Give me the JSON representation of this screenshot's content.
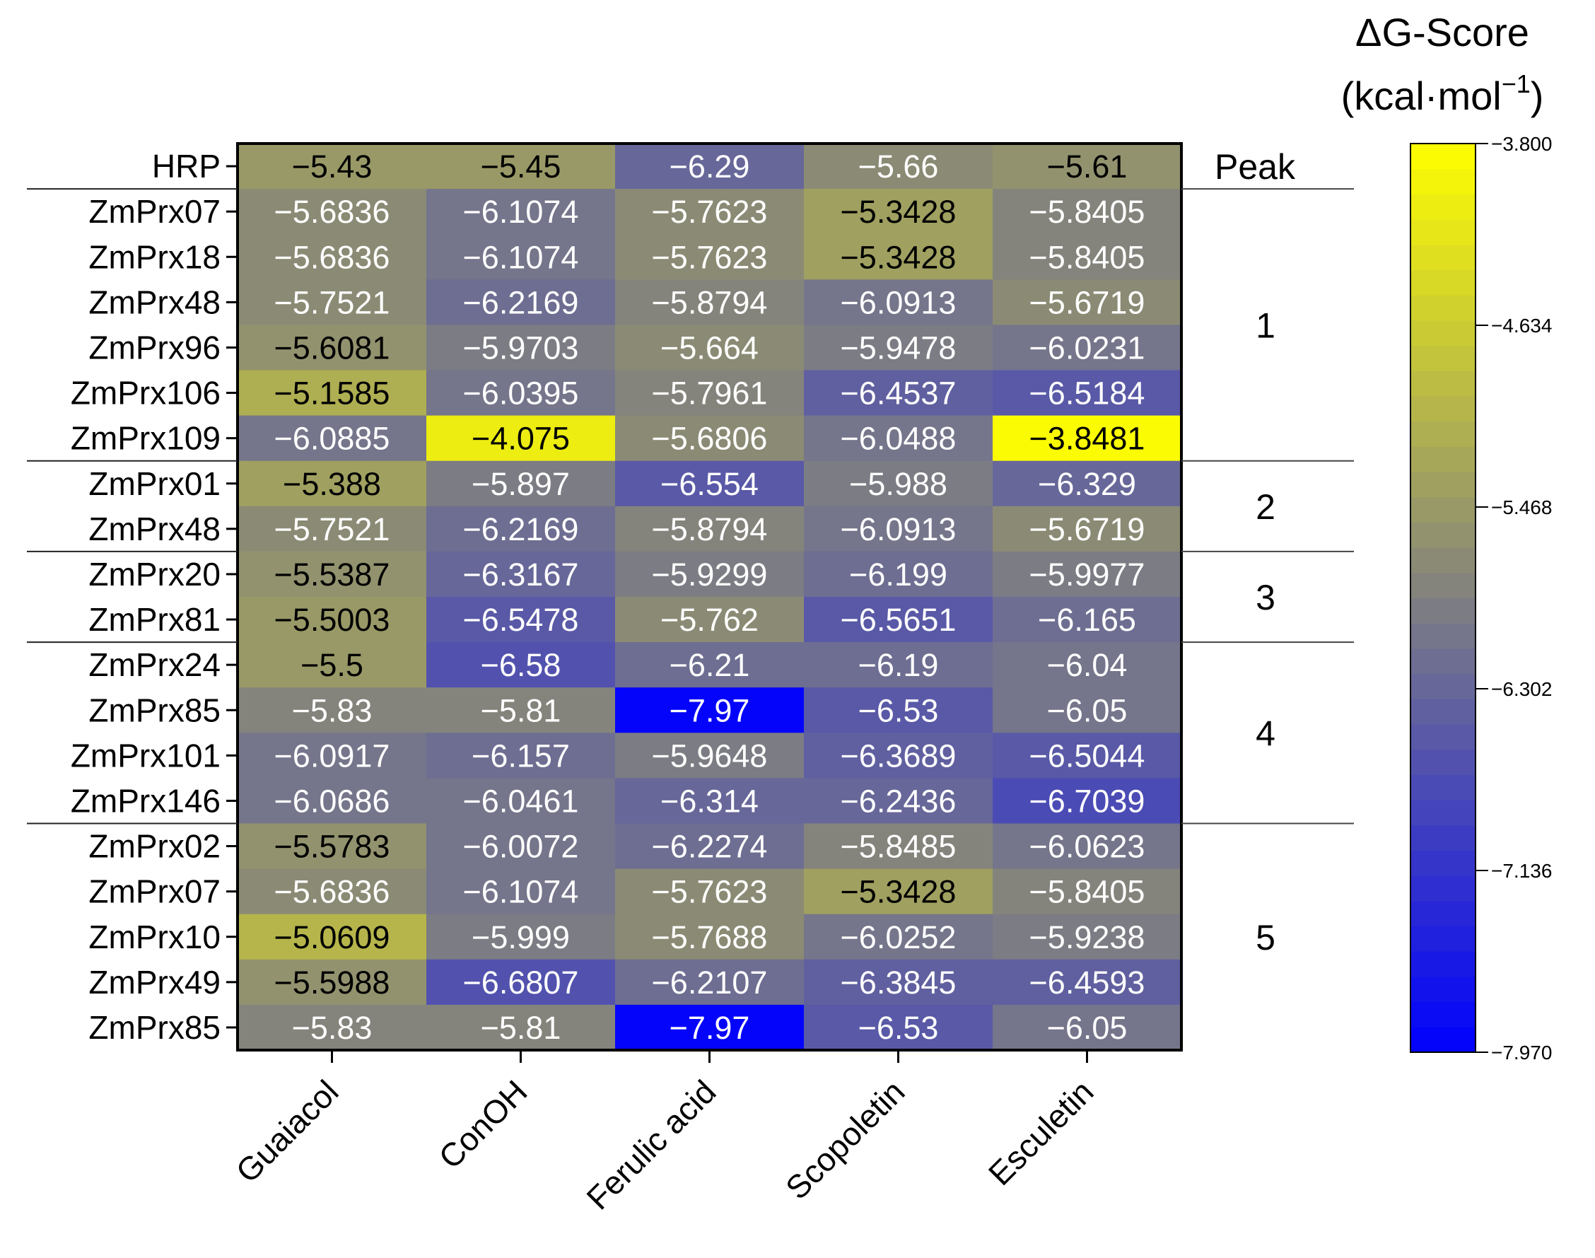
{
  "chart_data": {
    "type": "heatmap",
    "title": "",
    "xlabel": "",
    "ylabel": "",
    "colorbar": {
      "title_line1": "ΔG-Score",
      "title_line2": "(kcal·mol",
      "title_sup": "−1",
      "title_close": ")",
      "min": -7.97,
      "max": -3.8,
      "ticks": [
        "-3.800",
        "-4.634",
        "-5.468",
        "-6.302",
        "-7.136",
        "-7.970"
      ],
      "tick_values": [
        -3.8,
        -4.634,
        -5.468,
        -6.302,
        -7.136,
        -7.97
      ],
      "colors": {
        "low": "#0000ff",
        "mid": "#808080",
        "high": "#ffff00"
      },
      "levels": 36
    },
    "columns": [
      "Guaiacol",
      "ConOH",
      "Ferulic acid",
      "Scopoletin",
      "Esculetin"
    ],
    "rows": [
      {
        "label": "HRP",
        "values": [
          -5.43,
          -5.45,
          -6.29,
          -5.66,
          -5.61
        ],
        "labels": [
          "-5.43",
          "-5.45",
          "-6.29",
          "-5.66",
          "-5.61"
        ]
      },
      {
        "label": "ZmPrx07",
        "values": [
          -5.6836,
          -6.1074,
          -5.7623,
          -5.3428,
          -5.8405
        ],
        "labels": [
          "-5.6836",
          "-6.1074",
          "-5.7623",
          "-5.3428",
          "-5.8405"
        ]
      },
      {
        "label": "ZmPrx18",
        "values": [
          -5.6836,
          -6.1074,
          -5.7623,
          -5.3428,
          -5.8405
        ],
        "labels": [
          "-5.6836",
          "-6.1074",
          "-5.7623",
          "-5.3428",
          "-5.8405"
        ]
      },
      {
        "label": "ZmPrx48",
        "values": [
          -5.7521,
          -6.2169,
          -5.8794,
          -6.0913,
          -5.6719
        ],
        "labels": [
          "-5.7521",
          "-6.2169",
          "-5.8794",
          "-6.0913",
          "-5.6719"
        ]
      },
      {
        "label": "ZmPrx96",
        "values": [
          -5.6081,
          -5.9703,
          -5.664,
          -5.9478,
          -6.0231
        ],
        "labels": [
          "-5.6081",
          "-5.9703",
          "-5.664",
          "-5.9478",
          "-6.0231"
        ]
      },
      {
        "label": "ZmPrx106",
        "values": [
          -5.1585,
          -6.0395,
          -5.7961,
          -6.4537,
          -6.5184
        ],
        "labels": [
          "-5.1585",
          "-6.0395",
          "-5.7961",
          "-6.4537",
          "-6.5184"
        ]
      },
      {
        "label": "ZmPrx109",
        "values": [
          -6.0885,
          -4.075,
          -5.6806,
          -6.0488,
          -3.8481
        ],
        "labels": [
          "-6.0885",
          "-4.075",
          "-5.6806",
          "-6.0488",
          "-3.8481"
        ]
      },
      {
        "label": "ZmPrx01",
        "values": [
          -5.388,
          -5.897,
          -6.554,
          -5.988,
          -6.329
        ],
        "labels": [
          "-5.388",
          "-5.897",
          "-6.554",
          "-5.988",
          "-6.329"
        ]
      },
      {
        "label": "ZmPrx48",
        "values": [
          -5.7521,
          -6.2169,
          -5.8794,
          -6.0913,
          -5.6719
        ],
        "labels": [
          "-5.7521",
          "-6.2169",
          "-5.8794",
          "-6.0913",
          "-5.6719"
        ]
      },
      {
        "label": "ZmPrx20",
        "values": [
          -5.5387,
          -6.3167,
          -5.9299,
          -6.199,
          -5.9977
        ],
        "labels": [
          "-5.5387",
          "-6.3167",
          "-5.9299",
          "-6.199",
          "-5.9977"
        ]
      },
      {
        "label": "ZmPrx81",
        "values": [
          -5.5003,
          -6.5478,
          -5.762,
          -6.5651,
          -6.165
        ],
        "labels": [
          "-5.5003",
          "-6.5478",
          "-5.762",
          "-6.5651",
          "-6.165"
        ]
      },
      {
        "label": "ZmPrx24",
        "values": [
          -5.5,
          -6.58,
          -6.21,
          -6.19,
          -6.04
        ],
        "labels": [
          "-5.5",
          "-6.58",
          "-6.21",
          "-6.19",
          "-6.04"
        ]
      },
      {
        "label": "ZmPrx85",
        "values": [
          -5.83,
          -5.81,
          -7.97,
          -6.53,
          -6.05
        ],
        "labels": [
          "-5.83",
          "-5.81",
          "-7.97",
          "-6.53",
          "-6.05"
        ]
      },
      {
        "label": "ZmPrx101",
        "values": [
          -6.0917,
          -6.157,
          -5.9648,
          -6.3689,
          -6.5044
        ],
        "labels": [
          "-6.0917",
          "-6.157",
          "-5.9648",
          "-6.3689",
          "-6.5044"
        ]
      },
      {
        "label": "ZmPrx146",
        "values": [
          -6.0686,
          -6.0461,
          -6.314,
          -6.2436,
          -6.7039
        ],
        "labels": [
          "-6.0686",
          "-6.0461",
          "-6.314",
          "-6.2436",
          "-6.7039"
        ]
      },
      {
        "label": "ZmPrx02",
        "values": [
          -5.5783,
          -6.0072,
          -6.2274,
          -5.8485,
          -6.0623
        ],
        "labels": [
          "-5.5783",
          "-6.0072",
          "-6.2274",
          "-5.8485",
          "-6.0623"
        ]
      },
      {
        "label": "ZmPrx07",
        "values": [
          -5.6836,
          -6.1074,
          -5.7623,
          -5.3428,
          -5.8405
        ],
        "labels": [
          "-5.6836",
          "-6.1074",
          "-5.7623",
          "-5.3428",
          "-5.8405"
        ]
      },
      {
        "label": "ZmPrx10",
        "values": [
          -5.0609,
          -5.999,
          -5.7688,
          -6.0252,
          -5.9238
        ],
        "labels": [
          "-5.0609",
          "-5.999",
          "-5.7688",
          "-6.0252",
          "-5.9238"
        ]
      },
      {
        "label": "ZmPrx49",
        "values": [
          -5.5988,
          -6.6807,
          -6.2107,
          -6.3845,
          -6.4593
        ],
        "labels": [
          "-5.5988",
          "-6.6807",
          "-6.2107",
          "-6.3845",
          "-6.4593"
        ]
      },
      {
        "label": "ZmPrx85",
        "values": [
          -5.83,
          -5.81,
          -7.97,
          -6.53,
          -6.05
        ],
        "labels": [
          "-5.83",
          "-5.81",
          "-7.97",
          "-6.53",
          "-6.05"
        ]
      }
    ],
    "peaks": {
      "header": "Peak",
      "groups": [
        {
          "label": "1",
          "first_row": 1,
          "last_row": 6
        },
        {
          "label": "2",
          "first_row": 7,
          "last_row": 8
        },
        {
          "label": "3",
          "first_row": 9,
          "last_row": 10
        },
        {
          "label": "4",
          "first_row": 11,
          "last_row": 14
        },
        {
          "label": "5",
          "first_row": 15,
          "last_row": 19
        }
      ]
    }
  }
}
